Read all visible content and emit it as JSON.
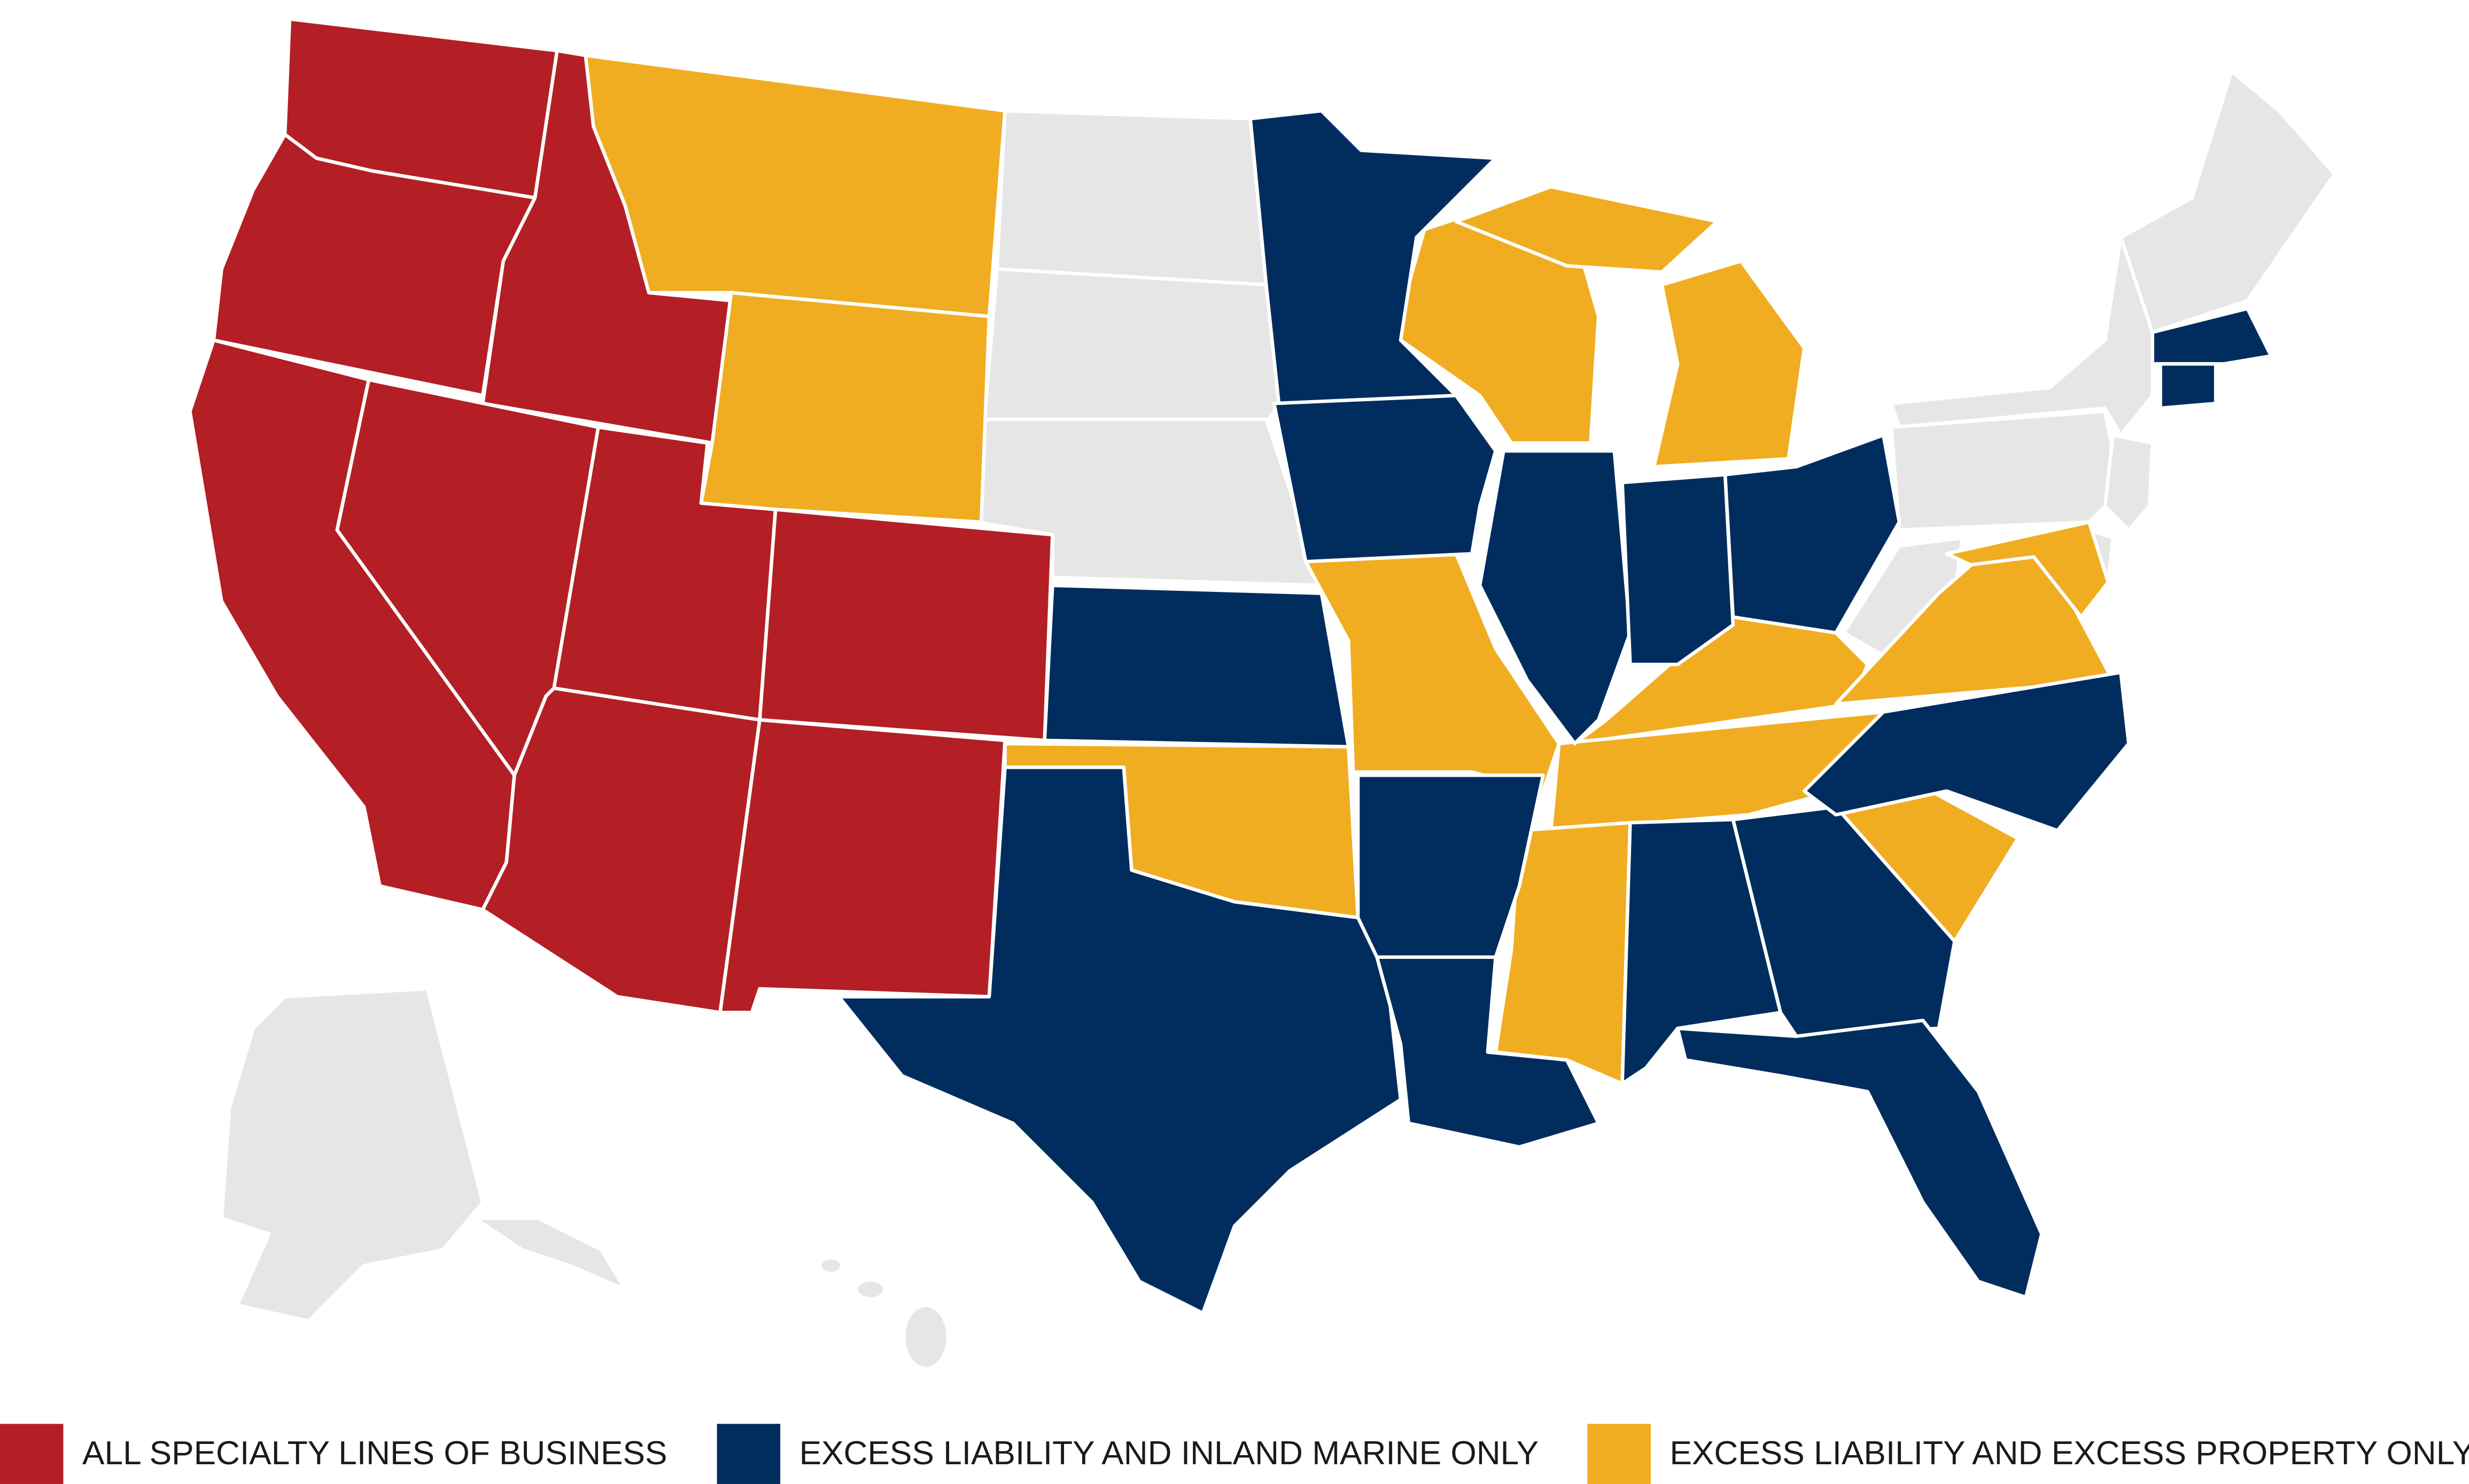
{
  "legend": {
    "items": [
      {
        "label": "ALL SPECIALTY LINES OF BUSINESS",
        "color": "#b31f24"
      },
      {
        "label": "EXCESS LIABILITY AND INLAND MARINE ONLY",
        "color": "#002d5d"
      },
      {
        "label": "EXCESS LIABILITY AND EXCESS PROPERTY ONLY",
        "color": "#f0ad21"
      }
    ]
  }
}
